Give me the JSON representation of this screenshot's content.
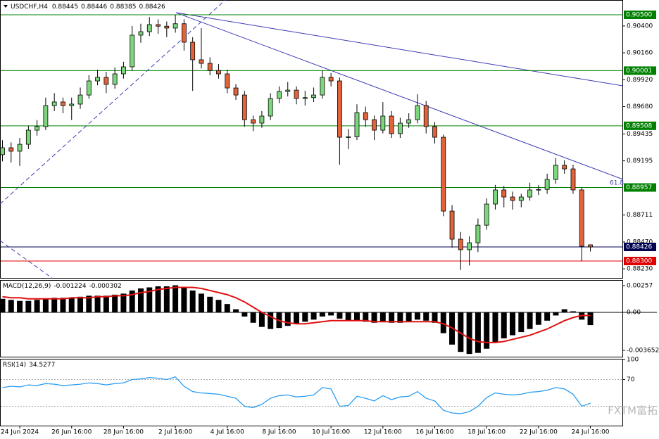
{
  "chart_data": [
    {
      "type": "candlestick",
      "title": "USDCHF,H4",
      "categories": [
        null,
        null,
        "24 Jun 2024",
        null,
        null,
        null,
        null,
        null,
        "26 Jun 16:00",
        null,
        null,
        null,
        null,
        null,
        "28 Jun 16:00",
        null,
        null,
        null,
        null,
        null,
        "2 Jul 16:00",
        null,
        null,
        null,
        null,
        null,
        "4 Jul 16:00",
        null,
        null,
        null,
        null,
        null,
        "8 Jul 16:00",
        null,
        null,
        null,
        null,
        null,
        "10 Jul 16:00",
        null,
        null,
        null,
        null,
        null,
        "12 Jul 16:00",
        null,
        null,
        null,
        null,
        null,
        "16 Jul 16:00",
        null,
        null,
        null,
        null,
        null,
        "18 Jul 16:00",
        null,
        null,
        null,
        null,
        null,
        "22 Jul 16:00",
        null,
        null,
        null,
        null,
        null,
        "24 Jul 16:00"
      ],
      "ohlc": [
        [
          0.8925,
          0.8938,
          0.8919,
          0.89312
        ],
        [
          0.89312,
          0.8936,
          0.8918,
          0.89281
        ],
        [
          0.89281,
          0.894,
          0.8915,
          0.89343
        ],
        [
          0.89343,
          0.8951,
          0.893,
          0.89469
        ],
        [
          0.89469,
          0.8956,
          0.8942,
          0.89501
        ],
        [
          0.89501,
          0.8976,
          0.8947,
          0.89689
        ],
        [
          0.89689,
          0.898,
          0.8964,
          0.89721
        ],
        [
          0.89721,
          0.8976,
          0.8962,
          0.89689
        ],
        [
          0.89689,
          0.8976,
          0.8956,
          0.89702
        ],
        [
          0.89702,
          0.8985,
          0.8966,
          0.89783
        ],
        [
          0.89783,
          0.8996,
          0.8975,
          0.89909
        ],
        [
          0.89909,
          0.9001,
          0.8987,
          0.89941
        ],
        [
          0.89941,
          0.8999,
          0.898,
          0.89878
        ],
        [
          0.89878,
          0.9003,
          0.8984,
          0.89972
        ],
        [
          0.89972,
          0.9008,
          0.8993,
          0.90035
        ],
        [
          0.90035,
          0.904,
          0.9,
          0.90318
        ],
        [
          0.90318,
          0.9042,
          0.9025,
          0.90349
        ],
        [
          0.90349,
          0.9048,
          0.9031,
          0.90412
        ],
        [
          0.90412,
          0.9046,
          0.9033,
          0.90398
        ],
        [
          0.90398,
          0.9044,
          0.903,
          0.90381
        ],
        [
          0.90381,
          0.905,
          0.9034,
          0.9042
        ],
        [
          0.9042,
          0.9046,
          0.9018,
          0.90255
        ],
        [
          0.90255,
          0.903,
          0.8982,
          0.90098
        ],
        [
          0.90098,
          0.9038,
          0.9002,
          0.90066
        ],
        [
          0.90066,
          0.9012,
          0.8996,
          0.90003
        ],
        [
          0.90003,
          0.9006,
          0.8993,
          0.89972
        ],
        [
          0.89972,
          0.9001,
          0.898,
          0.89846
        ],
        [
          0.89846,
          0.8988,
          0.8974,
          0.89783
        ],
        [
          0.89783,
          0.8982,
          0.895,
          0.89563
        ],
        [
          0.89563,
          0.896,
          0.8946,
          0.89532
        ],
        [
          0.89532,
          0.8964,
          0.8949,
          0.89595
        ],
        [
          0.89595,
          0.898,
          0.8956,
          0.89752
        ],
        [
          0.89752,
          0.8986,
          0.8971,
          0.89815
        ],
        [
          0.89815,
          0.899,
          0.8977,
          0.89827
        ],
        [
          0.89827,
          0.8986,
          0.897,
          0.89752
        ],
        [
          0.89752,
          0.8982,
          0.8969,
          0.8976
        ],
        [
          0.8976,
          0.8985,
          0.8972,
          0.89783
        ],
        [
          0.89783,
          0.9,
          0.8975,
          0.89941
        ],
        [
          0.89941,
          0.8998,
          0.8986,
          0.89909
        ],
        [
          0.89909,
          0.8994,
          0.8916,
          0.89406
        ],
        [
          0.89406,
          0.8948,
          0.893,
          0.8941
        ],
        [
          0.8941,
          0.897,
          0.8938,
          0.89626
        ],
        [
          0.89626,
          0.8968,
          0.895,
          0.89563
        ],
        [
          0.89563,
          0.896,
          0.8938,
          0.89469
        ],
        [
          0.89469,
          0.8972,
          0.8944,
          0.89595
        ],
        [
          0.89595,
          0.8964,
          0.894,
          0.89438
        ],
        [
          0.89438,
          0.8958,
          0.894,
          0.89532
        ],
        [
          0.89532,
          0.8962,
          0.8949,
          0.89563
        ],
        [
          0.89563,
          0.8979,
          0.8953,
          0.89689
        ],
        [
          0.89689,
          0.8973,
          0.8944,
          0.89501
        ],
        [
          0.89501,
          0.8954,
          0.8935,
          0.89406
        ],
        [
          0.89406,
          0.8943,
          0.887,
          0.88746
        ],
        [
          0.88746,
          0.888,
          0.8842,
          0.88495
        ],
        [
          0.88495,
          0.8856,
          0.8822,
          0.88401
        ],
        [
          0.88401,
          0.8852,
          0.8826,
          0.88463
        ],
        [
          0.88463,
          0.8868,
          0.8838,
          0.8862
        ],
        [
          0.8862,
          0.8886,
          0.8858,
          0.88809
        ],
        [
          0.88809,
          0.8898,
          0.8876,
          0.88935
        ],
        [
          0.88935,
          0.8897,
          0.8878,
          0.88872
        ],
        [
          0.88872,
          0.8892,
          0.8876,
          0.88841
        ],
        [
          0.88841,
          0.889,
          0.8878,
          0.88872
        ],
        [
          0.88872,
          0.89,
          0.8884,
          0.88935
        ],
        [
          0.88935,
          0.8898,
          0.8889,
          0.8894
        ],
        [
          0.8894,
          0.8908,
          0.889,
          0.89029
        ],
        [
          0.89029,
          0.8922,
          0.8899,
          0.89155
        ],
        [
          0.89155,
          0.892,
          0.8908,
          0.89123
        ],
        [
          0.89123,
          0.8916,
          0.889,
          0.88935
        ],
        [
          0.88935,
          0.8896,
          0.883,
          0.88432
        ],
        [
          0.88445,
          0.88446,
          0.88385,
          0.88426
        ]
      ],
      "up_color": "#7cd67c",
      "down_color": "#e2623a",
      "ylim": [
        0.88143,
        0.90632
      ],
      "yticks": [
        {
          "value": 0.904,
          "label": "0.90400"
        },
        {
          "value": 0.9016,
          "label": "0.90160"
        },
        {
          "value": 0.8992,
          "label": "0.89920"
        },
        {
          "value": 0.8968,
          "label": "0.89680"
        },
        {
          "value": 0.89435,
          "label": "0.89435"
        },
        {
          "value": 0.89195,
          "label": "0.89195"
        },
        {
          "value": 0.88711,
          "label": "0.88711"
        },
        {
          "value": 0.8847,
          "label": "0.88470"
        },
        {
          "value": 0.8823,
          "label": "0.88230"
        }
      ],
      "levels": [
        {
          "value": 0.905,
          "label": "0.90500",
          "color": "#008000"
        },
        {
          "value": 0.90001,
          "label": "0.90001",
          "color": "#008000"
        },
        {
          "value": 0.89508,
          "label": "0.89508",
          "color": "#008000"
        },
        {
          "value": 0.88957,
          "label": "0.88957",
          "color": "#008000"
        },
        {
          "value": 0.88426,
          "label": "0.88426",
          "color": "#000050"
        },
        {
          "value": 0.883,
          "label": "0.88300",
          "color": "#e00000"
        }
      ],
      "annotations": [
        "61.8"
      ],
      "watermark": "FXTM富拓"
    },
    {
      "type": "macd",
      "title": "MACD(12,26,9)",
      "values": [
        0.0013,
        0.0012,
        0.0011,
        0.0011,
        0.0012,
        0.0013,
        0.0014,
        0.0014,
        0.0014,
        0.0015,
        0.0016,
        0.0016,
        0.0016,
        0.0017,
        0.0018,
        0.0021,
        0.0023,
        0.0024,
        0.0025,
        0.0025,
        0.0026,
        0.0024,
        0.0021,
        0.0018,
        0.0015,
        0.0012,
        0.0008,
        0.0003,
        -0.0004,
        -0.001,
        -0.0014,
        -0.0016,
        -0.0015,
        -0.0013,
        -0.0011,
        -0.0009,
        -0.0007,
        -0.0004,
        -0.0003,
        -0.0006,
        -0.0008,
        -0.0008,
        -0.0009,
        -0.001,
        -0.0009,
        -0.001,
        -0.001,
        -0.0009,
        -0.0007,
        -0.0008,
        -0.001,
        -0.002,
        -0.0031,
        -0.0038,
        -0.004,
        -0.0039,
        -0.0035,
        -0.0029,
        -0.0025,
        -0.0022,
        -0.0019,
        -0.0016,
        -0.0012,
        -0.0008,
        -0.0003,
        0.0003,
        0.0001,
        -0.0007,
        -0.001224
      ],
      "signal": [
        0.0015,
        0.0014,
        0.0014,
        0.0013,
        0.0013,
        0.0013,
        0.0013,
        0.0013,
        0.0014,
        0.0014,
        0.0014,
        0.0015,
        0.0015,
        0.0016,
        0.0016,
        0.0017,
        0.0019,
        0.002,
        0.0022,
        0.0023,
        0.0024,
        0.0024,
        0.0024,
        0.0023,
        0.0021,
        0.0019,
        0.0017,
        0.0014,
        0.001,
        0.0005,
        0,
        -0.0004,
        -0.0008,
        -0.001,
        -0.0011,
        -0.0011,
        -0.001,
        -0.0009,
        -0.0008,
        -0.0008,
        -0.0008,
        -0.0008,
        -0.0008,
        -0.0009,
        -0.0009,
        -0.0009,
        -0.0009,
        -0.0009,
        -0.0009,
        -0.0009,
        -0.0009,
        -0.0011,
        -0.0015,
        -0.002,
        -0.0025,
        -0.0028,
        -0.0029,
        -0.0029,
        -0.0028,
        -0.0026,
        -0.0024,
        -0.0022,
        -0.0019,
        -0.0016,
        -0.0012,
        -0.0008,
        -0.0005,
        -0.0003,
        -0.000302
      ],
      "color": "#000000",
      "signal_color": "#e01010",
      "ylim": [
        -0.00433,
        0.00311
      ],
      "yticks": [
        0.00257,
        {
          "value": 0,
          "label": "0.00"
        },
        -0.003652
      ]
    },
    {
      "type": "line",
      "title": "RSI(14)",
      "values": [
        58,
        60,
        59,
        62,
        61,
        64,
        63,
        61,
        62,
        63,
        65,
        64,
        62,
        64,
        65,
        70,
        71,
        73,
        72,
        70,
        74,
        60,
        52,
        50,
        49,
        48,
        45,
        42,
        30,
        28,
        33,
        42,
        46,
        47,
        44,
        45,
        47,
        58,
        56,
        30,
        31,
        45,
        42,
        38,
        46,
        40,
        44,
        45,
        52,
        42,
        38,
        24,
        20,
        19,
        22,
        30,
        43,
        50,
        48,
        47,
        48,
        51,
        52,
        54,
        58,
        56,
        48,
        30,
        34.5277
      ],
      "color": "#2a9df4",
      "ylim": [
        0,
        100
      ],
      "yticks": [
        100,
        70
      ],
      "levels": [
        70,
        30
      ]
    }
  ]
}
